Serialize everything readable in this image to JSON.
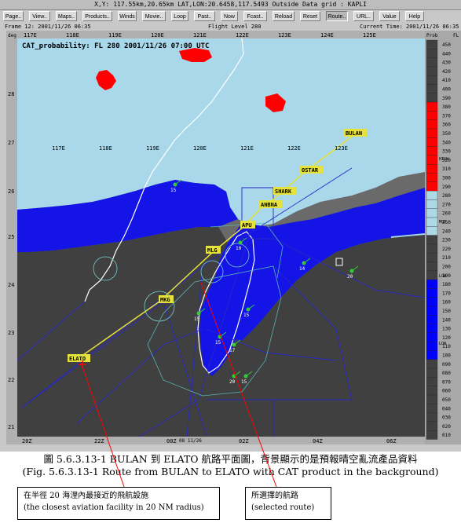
{
  "window": {
    "title": "X,Y: 117.55km,20.65km  LAT,LON:20.6458,117.5493  Outside Data grid : KAPLI"
  },
  "toolbar": {
    "buttons": [
      "Page..",
      "View..",
      "Maps..",
      "Products..",
      "Winds",
      "Movie..",
      "Loop",
      "Past..",
      "Now",
      "Fcast..",
      "Reload",
      "Reset",
      "Route..",
      "URL..",
      "Value",
      "Help"
    ],
    "active": "Route.."
  },
  "info": {
    "frame": "Frame 12: 2001/11/26 06:35",
    "flight_level": "Flight Level 280",
    "current_time": "Current Time: 2001/11/26 06:35"
  },
  "map": {
    "deg_label": "deg",
    "product_title": "CAT_probability:  FL 280  2001/11/26 07:00  UTC",
    "top_lon_labels": [
      "117E",
      "118E",
      "119E",
      "120E",
      "121E",
      "122E",
      "123E",
      "124E",
      "125E"
    ],
    "sub_lon_labels": [
      "117E",
      "118E",
      "119E",
      "120E",
      "121E",
      "122E",
      "123E"
    ],
    "lat_labels": [
      "28",
      "27",
      "26",
      "25",
      "24",
      "23",
      "22",
      "21"
    ],
    "bottom_labels": [
      "20Z",
      "22Z",
      "00Z",
      "02Z",
      "04Z",
      "06Z"
    ],
    "date_label": "08 11/26",
    "waypoints": [
      "BULAN",
      "OSTAR",
      "SHARK",
      "ANBNA",
      "APU",
      "MLG",
      "MKG",
      "ELATO"
    ],
    "station_numbers": [
      "15",
      "10",
      "14",
      "15",
      "15",
      "15",
      "17",
      "20",
      "15",
      "20"
    ]
  },
  "colorbar": {
    "header_left": "Prob",
    "header_right": "FL",
    "levels": [
      "450",
      "440",
      "430",
      "420",
      "410",
      "400",
      "390",
      "380",
      "370",
      "360",
      "350",
      "340",
      "330",
      "320",
      "310",
      "300",
      "290",
      "280",
      "270",
      "260",
      "250",
      "240",
      "230",
      "220",
      "210",
      "200",
      "190",
      "180",
      "170",
      "160",
      "150",
      "140",
      "130",
      "120",
      "110",
      "100",
      "090",
      "080",
      "070",
      "060",
      "050",
      "040",
      "030",
      "020",
      "010"
    ],
    "band_labels": [
      "HIGH",
      "MOD",
      "LOW",
      "LOW"
    ],
    "colors": {
      "high": "#ff0000",
      "mod": "#add8e6",
      "low": "#0000ff",
      "none": "#404040"
    }
  },
  "caption": {
    "line1": "圖 5.6.3.13-1 BULAN 到 ELATO 航路平面圖，背景顯示的是預報晴空亂流產品資料",
    "line2": "(Fig. 5.6.3.13-1 Route from BULAN to ELATO with CAT product in the background)"
  },
  "notes": {
    "left_zh": "在半徑 20 海浬內最接近的飛航設施",
    "left_en": "(the closest aviation facility in 20 NM radius)",
    "right_zh": "所選擇的航路",
    "right_en": "(selected route)"
  },
  "palette": {
    "sea_gray": "#6a6a6a",
    "land_dark": "#404040",
    "low_blue": "#1414e6",
    "mod_lightblue": "#a9d8ea",
    "high_red": "#ff0000",
    "route_yellow": "#e6e23c",
    "airway_blue": "#2828c8",
    "coast_white": "#ffffff"
  }
}
